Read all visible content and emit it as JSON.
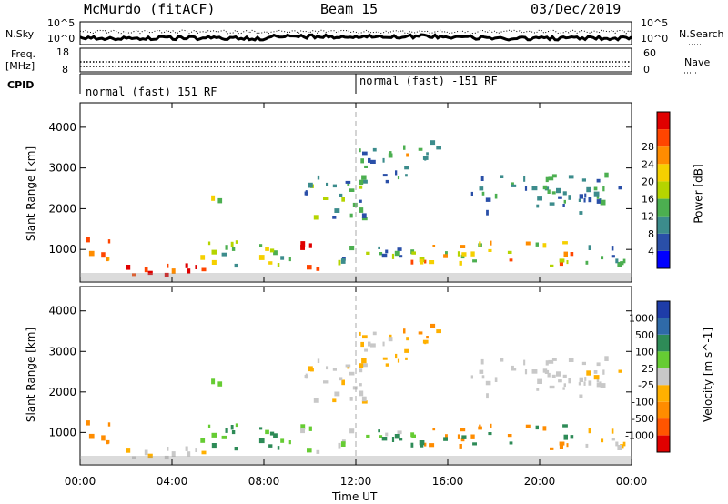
{
  "header": {
    "station": "McMurdo (fitACF)",
    "beam": "Beam 15",
    "date": "03/Dec/2019"
  },
  "top_panels": {
    "nsky_label": "N.Sky",
    "nsky_ticks": [
      "10^5",
      "10^0"
    ],
    "nsearch_label": "N.Search",
    "nsearch_ticks": [
      "10^5",
      "10^0"
    ],
    "freq_label_1": "Freq.",
    "freq_label_2": "[MHz]",
    "freq_ticks": [
      "18",
      "8"
    ],
    "nave_label": "Nave",
    "nave_ticks": [
      "60",
      "0"
    ],
    "cpid_label": "CPID",
    "cpid_mode_1": "normal (fast) 151 RF",
    "cpid_mode_2": "normal (fast) -151 RF"
  },
  "colors": {
    "power": [
      "#0000ff",
      "#2a4fa8",
      "#3c8c8c",
      "#4caf50",
      "#b5d400",
      "#f5d000",
      "#ff8c00",
      "#ff4500",
      "#e00000"
    ],
    "velocity": [
      "#e00000",
      "#ff5500",
      "#ff8c00",
      "#ffb000",
      "#c8c8c8",
      "#66cc33",
      "#2e8b57",
      "#2f6aa8",
      "#1e3ca8"
    ]
  },
  "chart_data": [
    {
      "type": "heatmap",
      "name": "power",
      "xlabel": "",
      "ylabel": "Slant Range [km]",
      "xlim": [
        "00:00",
        "00:00"
      ],
      "ylim": [
        200,
        4600
      ],
      "yticks": [
        1000,
        2000,
        3000,
        4000
      ],
      "colorbar_label": "Power [dB]",
      "colorbar_ticks": [
        4,
        8,
        12,
        16,
        20,
        24,
        28
      ]
    },
    {
      "type": "heatmap",
      "name": "velocity",
      "xlabel": "Time UT",
      "ylabel": "Slant Range [km]",
      "xticks": [
        "00:00",
        "04:00",
        "08:00",
        "12:00",
        "16:00",
        "20:00",
        "00:00"
      ],
      "ylim": [
        200,
        4600
      ],
      "yticks": [
        1000,
        2000,
        3000,
        4000
      ],
      "colorbar_label": "Velocity [m s^-1]",
      "colorbar_ticks": [
        1000,
        500,
        100,
        25,
        -25,
        -100,
        -500,
        -1000
      ]
    }
  ],
  "bottom_axis": {
    "xticks": [
      "00:00",
      "04:00",
      "08:00",
      "12:00",
      "16:00",
      "20:00",
      "00:00"
    ],
    "xlabel": "Time UT"
  }
}
